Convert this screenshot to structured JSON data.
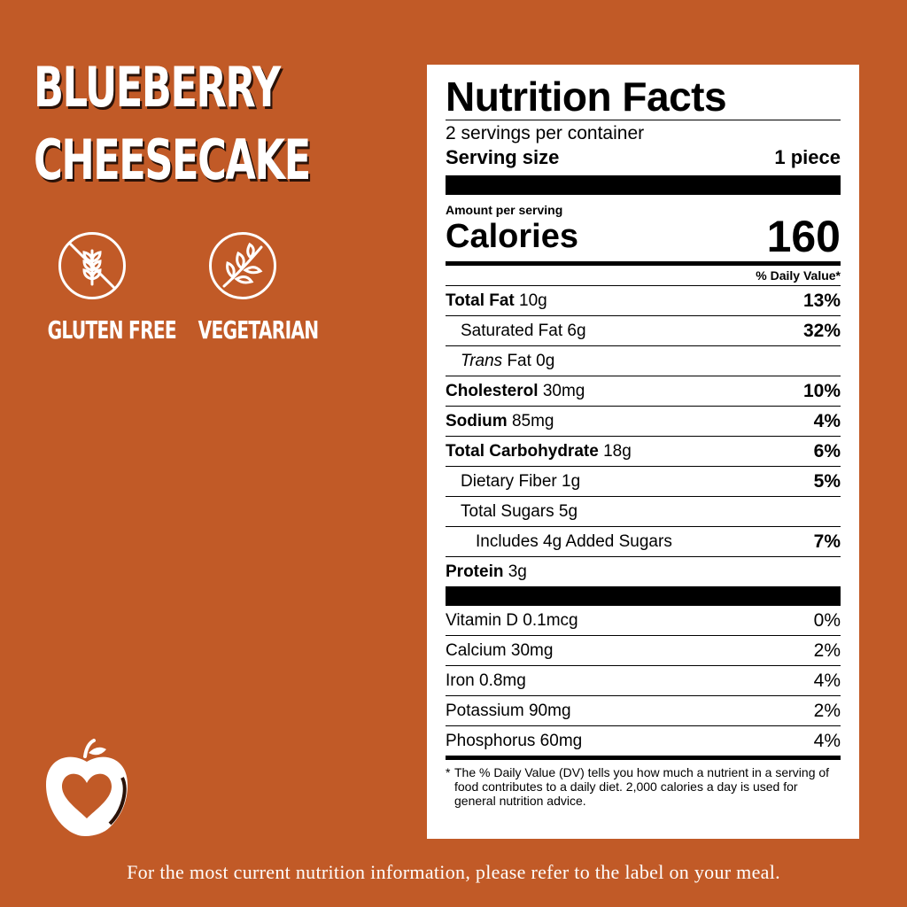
{
  "product": {
    "title_line1": "BLUEBERRY",
    "title_line2": "CHEESECAKE"
  },
  "badges": [
    {
      "icon": "gluten-free-icon",
      "label": "GLUTEN FREE"
    },
    {
      "icon": "vegetarian-leaf-icon",
      "label": "VEGETARIAN"
    }
  ],
  "footer_text": "For the most current nutrition information, please refer to the label on your meal.",
  "nutrition": {
    "title": "Nutrition Facts",
    "servings_per_container": "2 servings per container",
    "serving_size_label": "Serving size",
    "serving_size_value": "1 piece",
    "amount_per_serving": "Amount per serving",
    "calories_label": "Calories",
    "calories_value": "160",
    "dv_header": "% Daily Value*",
    "rows": [
      {
        "name": "Total Fat",
        "amount": "10g",
        "pct": "13%"
      },
      {
        "name": "Saturated Fat",
        "amount": "6g",
        "pct": "32%"
      },
      {
        "name": "Trans",
        "amount": "Fat 0g",
        "pct": ""
      },
      {
        "name": "Cholesterol",
        "amount": "30mg",
        "pct": "10%"
      },
      {
        "name": "Sodium",
        "amount": "85mg",
        "pct": "4%"
      },
      {
        "name": "Total Carbohydrate",
        "amount": "18g",
        "pct": "6%"
      },
      {
        "name": "Dietary Fiber",
        "amount": "1g",
        "pct": "5%"
      },
      {
        "name": "Total Sugars",
        "amount": "5g",
        "pct": ""
      },
      {
        "name": "Includes 4g Added Sugars",
        "amount": "",
        "pct": "7%"
      },
      {
        "name": "Protein",
        "amount": "3g",
        "pct": ""
      }
    ],
    "vitamins": [
      {
        "name": "Vitamin D 0.1mcg",
        "pct": "0%"
      },
      {
        "name": "Calcium 30mg",
        "pct": "2%"
      },
      {
        "name": "Iron 0.8mg",
        "pct": "4%"
      },
      {
        "name": "Potassium 90mg",
        "pct": "2%"
      },
      {
        "name": "Phosphorus 60mg",
        "pct": "4%"
      }
    ],
    "footnote": "The % Daily Value (DV) tells you how much a nutrient in a serving of food contributes to a daily diet. 2,000 calories a day is used for general nutrition advice."
  },
  "colors": {
    "background": "#c15a27",
    "text": "#ffffff",
    "label_bg": "#ffffff"
  }
}
